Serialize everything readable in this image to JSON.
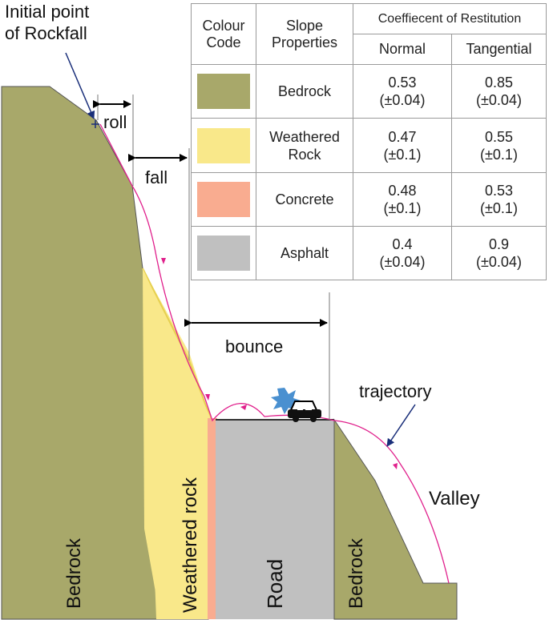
{
  "labels": {
    "initial_point_line1": "Initial point",
    "initial_point_line2": "of Rockfall",
    "roll": "roll",
    "fall": "fall",
    "bounce": "bounce",
    "trajectory": "trajectory",
    "valley": "Valley",
    "bedrock_left": "Bedrock",
    "weathered_rock": "Weathered rock",
    "road": "Road",
    "bedrock_right": "Bedrock"
  },
  "table": {
    "headers": {
      "colour_code": "Colour\nCode",
      "slope_properties": "Slope\nProperties",
      "coefficient": "Coeffiecent of Restitution",
      "normal": "Normal",
      "tangential": "Tangential"
    },
    "rows": [
      {
        "color": "#a8a86a",
        "name": "Bedrock",
        "normal": "0.53\n(±0.04)",
        "tangential": "0.85\n(±0.04)"
      },
      {
        "color": "#f9e88a",
        "name": "Weathered\nRock",
        "normal": "0.47\n(±0.1)",
        "tangential": "0.55\n(±0.1)"
      },
      {
        "color": "#f9ac90",
        "name": "Concrete",
        "normal": "0.48\n(±0.1)",
        "tangential": "0.53\n(±0.1)"
      },
      {
        "color": "#c0c0c0",
        "name": "Asphalt",
        "normal": "0.4\n(±0.04)",
        "tangential": "0.9\n(±0.04)"
      }
    ]
  },
  "colors": {
    "bedrock": "#a8a86a",
    "weathered_rock": "#f9e88a",
    "concrete": "#f9ac90",
    "asphalt": "#c0c0c0",
    "trajectory": "#e0208c",
    "pointer_arrow": "#1a2f7a",
    "impact": "#4a90d0"
  }
}
